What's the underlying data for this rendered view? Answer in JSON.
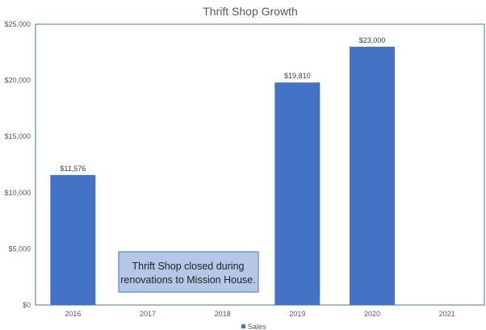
{
  "chart_data": {
    "type": "bar",
    "title": "Thrift Shop Growth",
    "xlabel": "",
    "ylabel": "",
    "categories": [
      "2016",
      "2017",
      "2018",
      "2019",
      "2020",
      "2021"
    ],
    "series": [
      {
        "name": "Sales",
        "values": [
          11576,
          null,
          null,
          19810,
          23000,
          null
        ]
      }
    ],
    "data_labels": [
      "$11,576",
      "",
      "",
      "$19,810",
      "$23,000",
      ""
    ],
    "ylim": [
      0,
      25000
    ],
    "y_ticks": [
      0,
      5000,
      10000,
      15000,
      20000,
      25000
    ],
    "y_tick_labels": [
      "$0",
      "$5,000",
      "$10,000",
      "$15,000",
      "$20,000",
      "$25,000"
    ],
    "grid": false,
    "legend_position": "bottom",
    "annotation": {
      "lines": [
        "Thrift Shop closed during",
        "renovations to Mission House."
      ]
    },
    "colors": {
      "bar": "#4472C4",
      "plot_border": "#4472C4",
      "annotation_fill": "#B4C7E7",
      "annotation_border": "#4472C4"
    }
  }
}
